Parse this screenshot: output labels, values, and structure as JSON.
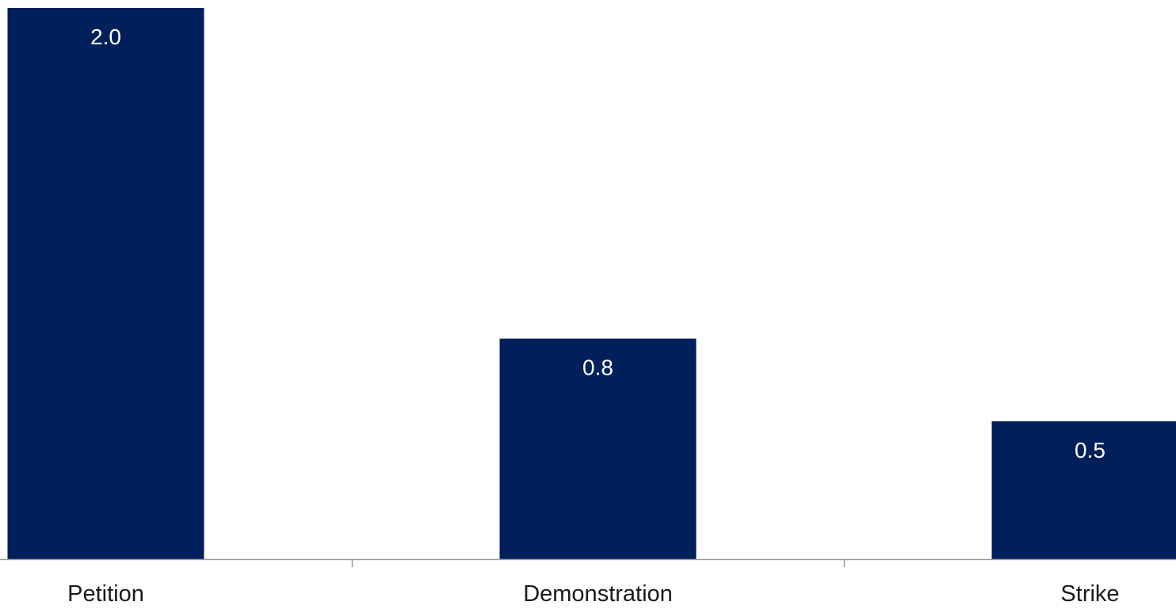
{
  "chart_data": {
    "type": "bar",
    "categories": [
      "Petition",
      "Demonstration",
      "Strike"
    ],
    "values": [
      2.0,
      0.8,
      0.5
    ],
    "value_labels": [
      "2.0",
      "0.8",
      "0.5"
    ],
    "title": "",
    "xlabel": "",
    "ylabel": "",
    "ylim": [
      0,
      2.0
    ],
    "grid": false,
    "legend": "none",
    "colors": {
      "bar": "#00205b",
      "bar_label": "#ffffff",
      "axis": "#999999",
      "category_label": "#1a1a1a"
    }
  }
}
